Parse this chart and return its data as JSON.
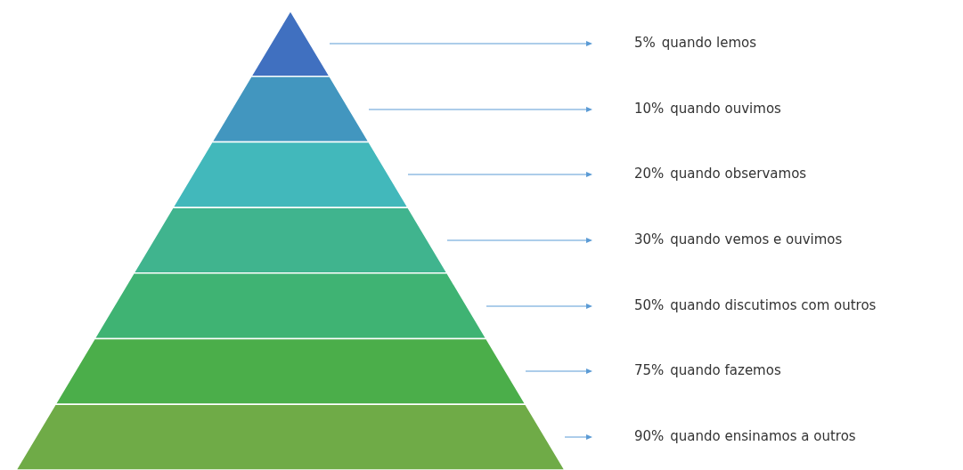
{
  "chart_data": {
    "type": "other",
    "categories": [
      "quando lemos",
      "quando ouvimos",
      "quando observamos",
      "quando vemos e ouvimos",
      "quando discutimos com outros",
      "quando fazemos",
      "quando ensinamos a outros"
    ],
    "values": [
      5,
      10,
      20,
      30,
      50,
      75,
      90
    ],
    "value_labels": [
      "5%",
      "10%",
      "20%",
      "30%",
      "50%",
      "75%",
      "90%"
    ],
    "colors": [
      "#4070c0",
      "#4296bf",
      "#42b8bb",
      "#40b48e",
      "#3fb373",
      "#4bae4a",
      "#6fab47"
    ]
  }
}
